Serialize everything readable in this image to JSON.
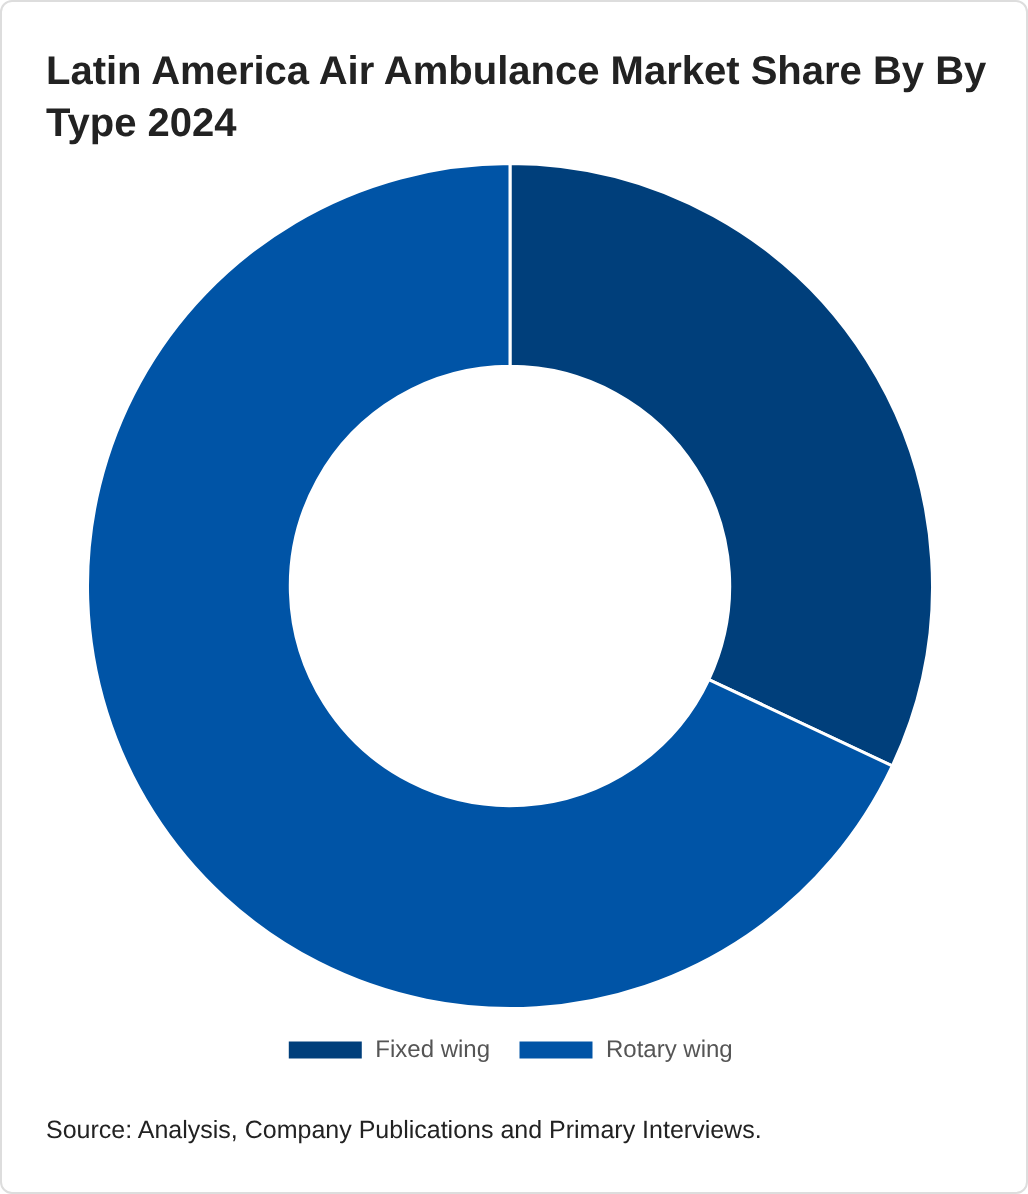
{
  "chart_data": {
    "type": "donut",
    "title": "Latin America Air Ambulance Market Share By By Type 2024",
    "categories": [
      "Fixed wing",
      "Rotary wing"
    ],
    "values": [
      32,
      68
    ],
    "colors": [
      "#003f7b",
      "#0054a6"
    ],
    "legend": "bottom",
    "annotations": [
      "Source: Analysis, Company Publications and Primary Interviews."
    ]
  }
}
